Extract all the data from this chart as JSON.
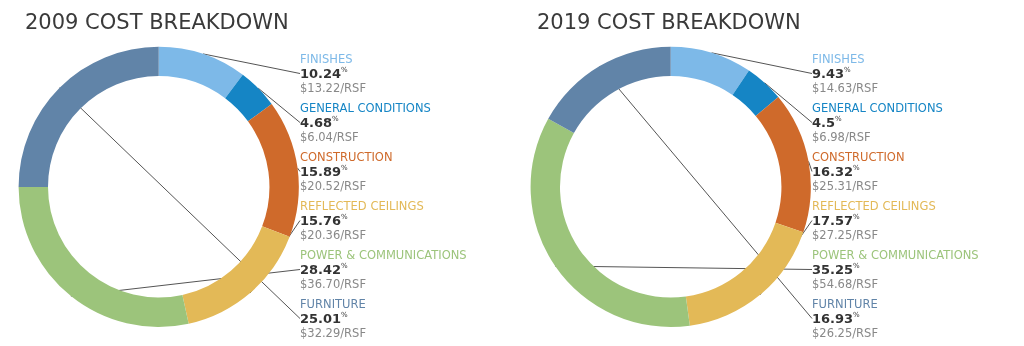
{
  "chart_data": [
    {
      "type": "donut",
      "title": "2009 COST BREAKDOWN",
      "categories": [
        "FINISHES",
        "GENERAL CONDITIONS",
        "CONSTRUCTION",
        "REFLECTED CEILINGS",
        "POWER & COMMUNICATIONS",
        "FURNITURE"
      ],
      "values": [
        10.24,
        4.68,
        15.89,
        15.76,
        28.42,
        25.01
      ],
      "value_labels": [
        "10.24$^{%}$\n$13.22/RSF",
        "4.68$^{%}$\n$6.04/RSF",
        "15.89$^{%}$\n$20.52/RSF",
        "15.76$^{%}$\n$20.36/RSF",
        "28.42$^{%}$\n$36.70/RSF",
        "25.01$^{%}$\n$32.29/RSF"
      ],
      "colors": [
        "#7db9e8",
        "#1585c5",
        "#cf6a2b",
        "#e3b957",
        "#9cc47b",
        "#6184a8"
      ]
    },
    {
      "type": "donut",
      "title": "2019 COST BREAKDOWN",
      "categories": [
        "FINISHES",
        "GENERAL CONDITIONS",
        "CONSTRUCTION",
        "REFLECTED CEILINGS",
        "POWER & COMMUNICATIONS",
        "FURNITURE"
      ],
      "values": [
        9.43,
        4.5,
        16.32,
        17.57,
        35.25,
        16.93
      ],
      "value_labels": [
        "9.43$^{%}$\n$14.63/RSF",
        "4.5$^{%}$\n$6.98/RSF",
        "16.32$^{%}$\n$25.31/RSF",
        "17.57$^{%}$\n$27.25/RSF",
        "35.25$^{%}$\n$54.68/RSF",
        "16.93$^{%}$\n$26.25/RSF"
      ],
      "colors": [
        "#7db9e8",
        "#1585c5",
        "#cf6a2b",
        "#e3b957",
        "#9cc47b",
        "#6184a8"
      ]
    }
  ]
}
